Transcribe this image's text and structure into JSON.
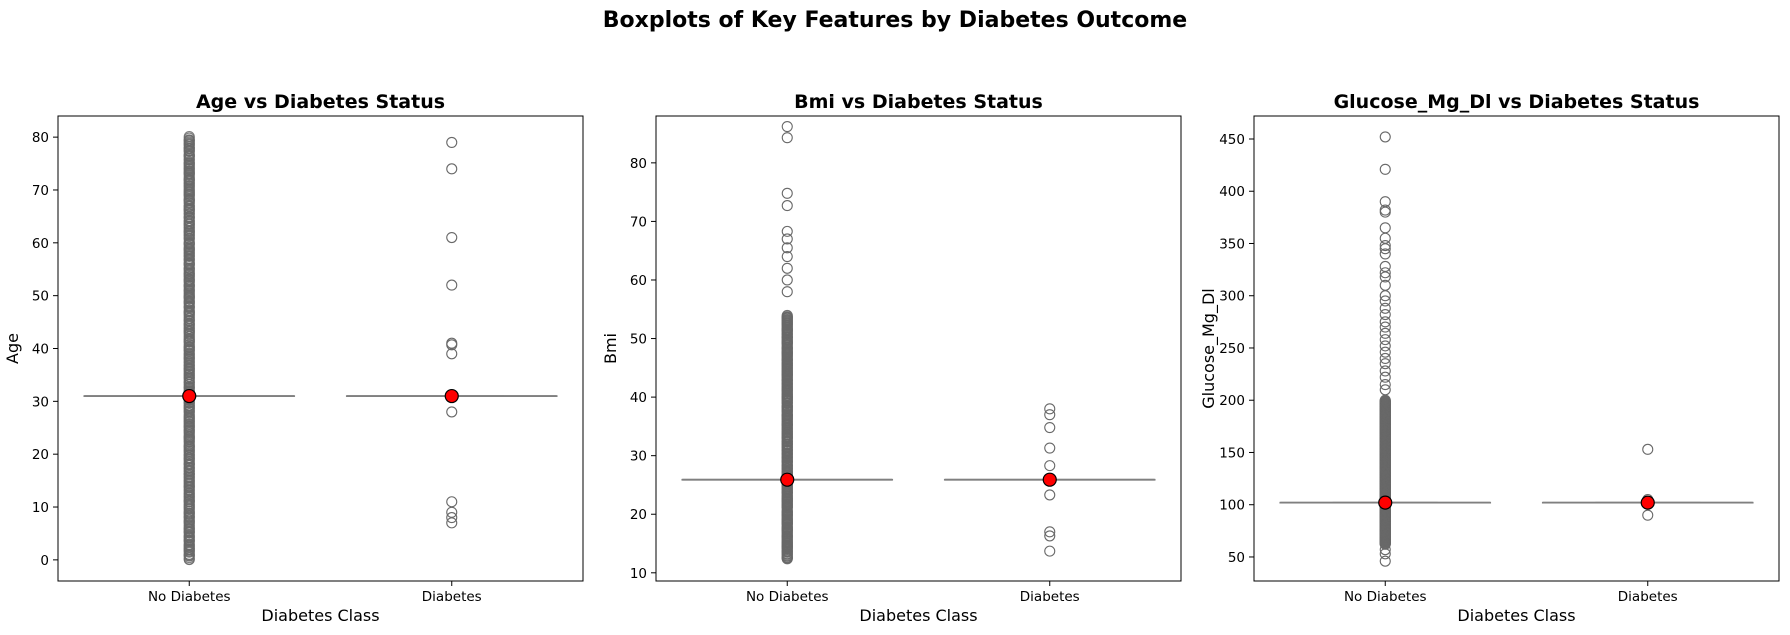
{
  "figure": {
    "suptitle": "Boxplots of Key Features by Diabetes Outcome"
  },
  "colors": {
    "box_line": "#808080",
    "outlier_edge": "#696969",
    "mean_fill": "#ff0000",
    "mean_edge": "#000000",
    "axis": "#000000"
  },
  "chart_data": [
    {
      "type": "box",
      "title": "Age vs Diabetes Status",
      "xlabel": "Diabetes Class",
      "ylabel": "Age",
      "categories": [
        "No Diabetes",
        "Diabetes"
      ],
      "ylim": [
        -4,
        84
      ],
      "yticks": [
        0,
        10,
        20,
        30,
        40,
        50,
        60,
        70,
        80
      ],
      "grid": false,
      "boxes": [
        {
          "q1": 31,
          "median": 31,
          "q3": 31,
          "whisker_low": 31,
          "whisker_high": 31,
          "mean": 31,
          "outlier_range": [
            0,
            80
          ],
          "outliers": []
        },
        {
          "q1": 31,
          "median": 31,
          "q3": 31,
          "whisker_low": 31,
          "whisker_high": 31,
          "mean": 31,
          "outliers": [
            79,
            74,
            61,
            52,
            41,
            40.7,
            39,
            28,
            11,
            9,
            8,
            7
          ]
        }
      ]
    },
    {
      "type": "box",
      "title": "Bmi vs Diabetes Status",
      "xlabel": "Diabetes Class",
      "ylabel": "Bmi",
      "categories": [
        "No Diabetes",
        "Diabetes"
      ],
      "ylim": [
        8.6,
        88
      ],
      "yticks": [
        10,
        20,
        30,
        40,
        50,
        60,
        70,
        80
      ],
      "grid": false,
      "boxes": [
        {
          "q1": 25.9,
          "median": 25.9,
          "q3": 25.9,
          "whisker_low": 25.9,
          "whisker_high": 25.9,
          "mean": 25.9,
          "outlier_range": [
            12.3,
            54
          ],
          "outliers": [
            58,
            60,
            62,
            64,
            65.5,
            67,
            68.3,
            72.7,
            74.8,
            84.3,
            86.2
          ]
        },
        {
          "q1": 25.9,
          "median": 25.9,
          "q3": 25.9,
          "whisker_low": 25.9,
          "whisker_high": 25.9,
          "mean": 25.9,
          "outliers": [
            38,
            37,
            34.8,
            31.3,
            28.3,
            23.3,
            17,
            16.3,
            13.7
          ]
        }
      ]
    },
    {
      "type": "box",
      "title": "Glucose_Mg_Dl vs Diabetes Status",
      "xlabel": "Diabetes Class",
      "ylabel": "Glucose_Mg_Dl",
      "categories": [
        "No Diabetes",
        "Diabetes"
      ],
      "ylim": [
        27,
        472
      ],
      "yticks": [
        50,
        100,
        150,
        200,
        250,
        300,
        350,
        400,
        450
      ],
      "grid": false,
      "boxes": [
        {
          "q1": 102,
          "median": 102,
          "q3": 102,
          "whisker_low": 102,
          "whisker_high": 102,
          "mean": 102,
          "outlier_range": [
            62,
            200
          ],
          "outliers": [
            46,
            53,
            57,
            210,
            215,
            222,
            228,
            235,
            240,
            246,
            252,
            258,
            264,
            270,
            275,
            282,
            288,
            295,
            300,
            310,
            318,
            322,
            328,
            340,
            345,
            348,
            355,
            365,
            380,
            382,
            390,
            421,
            452
          ]
        },
        {
          "q1": 102,
          "median": 102,
          "q3": 102,
          "whisker_low": 102,
          "whisker_high": 102,
          "mean": 102,
          "outliers": [
            153,
            105,
            90
          ]
        }
      ]
    }
  ]
}
